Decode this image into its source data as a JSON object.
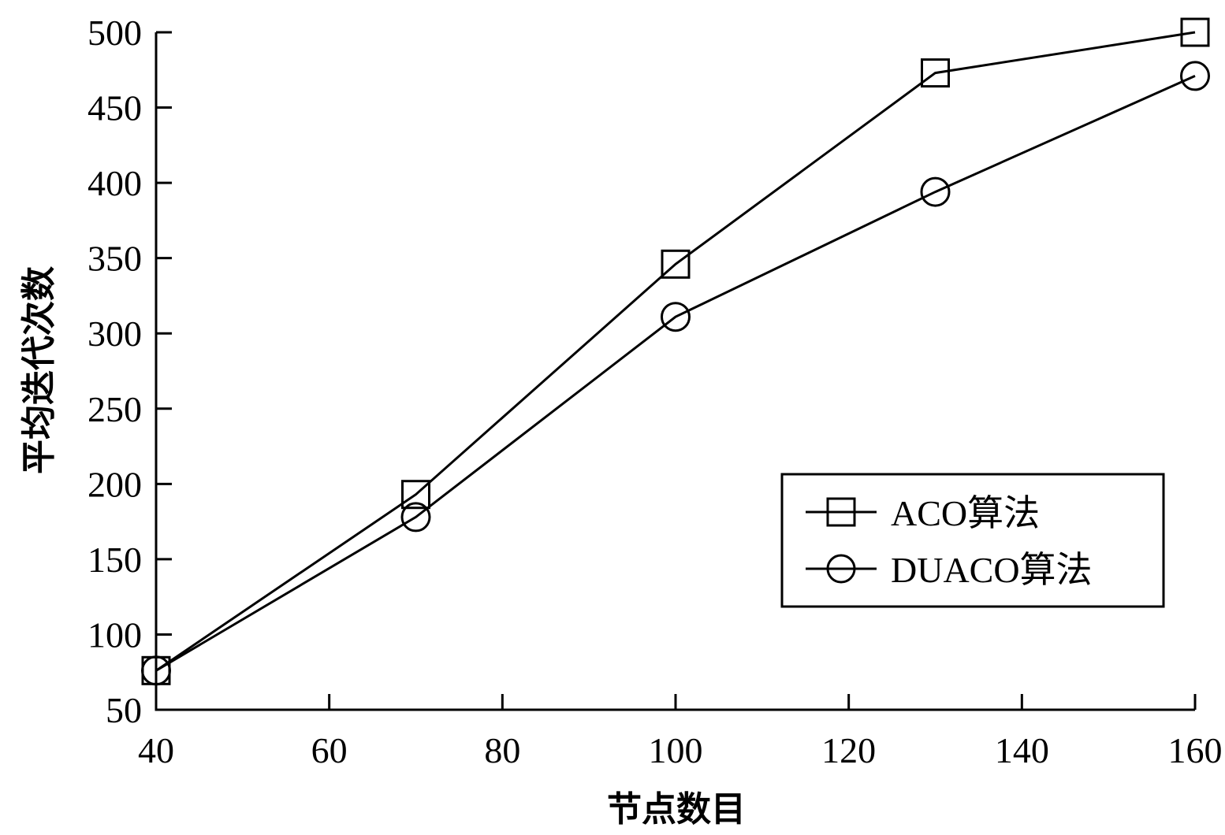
{
  "chart_data": {
    "type": "line",
    "title": "",
    "xlabel": "节点数目",
    "ylabel": "平均迭代次数",
    "xlim": [
      40,
      160
    ],
    "ylim": [
      50,
      500
    ],
    "xticks": [
      40,
      60,
      80,
      100,
      120,
      140,
      160
    ],
    "yticks": [
      50,
      100,
      150,
      200,
      250,
      300,
      350,
      400,
      450,
      500
    ],
    "grid": false,
    "legend": {
      "position": "bottom-right"
    },
    "series": [
      {
        "name": "ACO算法",
        "marker": "square",
        "color": "#000000",
        "x": [
          40,
          70,
          100,
          130,
          160
        ],
        "y": [
          76,
          193,
          346,
          473,
          500
        ]
      },
      {
        "name": "DUACO算法",
        "marker": "circle",
        "color": "#000000",
        "x": [
          40,
          70,
          100,
          130,
          160
        ],
        "y": [
          76,
          178,
          311,
          394,
          471
        ]
      }
    ]
  }
}
